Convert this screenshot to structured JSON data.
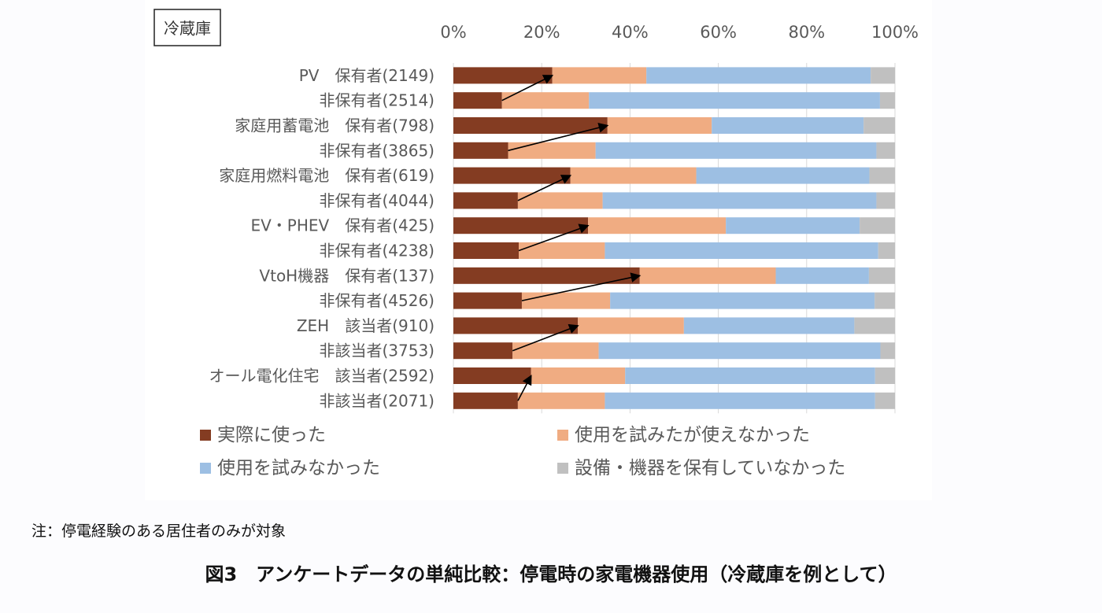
{
  "note": "注：停電経験のある居住者のみが対象",
  "caption": "図3　アンケートデータの単純比較：停電時の家電機器使用（冷蔵庫を例として）",
  "chart_data": {
    "type": "bar",
    "orientation": "horizontal",
    "stacked": "percent",
    "title": "冷蔵庫",
    "xlim": [
      0,
      100
    ],
    "x_ticks": [
      "0%",
      "20%",
      "40%",
      "60%",
      "80%",
      "100%"
    ],
    "categories": [
      "PV　保有者(2149)",
      "非保有者(2514)",
      "家庭用蓄電池　保有者(798)",
      "非保有者(3865)",
      "家庭用燃料電池　保有者(619)",
      "非保有者(4044)",
      "EV・PHEV　保有者(425)",
      "非保有者(4238)",
      "VtoH機器　保有者(137)",
      "非保有者(4526)",
      "ZEH　該当者(910)",
      "非該当者(3753)",
      "オール電化住宅　該当者(2592)",
      "非該当者(2071)"
    ],
    "series": [
      {
        "name": "実際に使った",
        "color": "#843c22",
        "values": [
          22.4,
          11.0,
          34.9,
          12.4,
          26.5,
          14.6,
          30.5,
          14.8,
          42.2,
          15.5,
          28.2,
          13.4,
          17.6,
          14.6
        ]
      },
      {
        "name": "使用を試みたが使えなかった",
        "color": "#f0ac82",
        "values": [
          21.3,
          19.7,
          23.6,
          19.8,
          28.5,
          19.2,
          31.2,
          19.5,
          30.8,
          20.0,
          24.0,
          19.5,
          21.3,
          19.7
        ]
      },
      {
        "name": "使用を試みなかった",
        "color": "#9dbfe3",
        "values": [
          50.8,
          65.9,
          34.4,
          63.6,
          39.2,
          62.0,
          30.3,
          61.9,
          21.1,
          59.9,
          38.6,
          63.8,
          56.6,
          61.2
        ]
      },
      {
        "name": "設備・機器を保有していなかった",
        "color": "#c0c0c0",
        "values": [
          5.5,
          3.4,
          7.1,
          4.2,
          5.8,
          4.2,
          8.0,
          3.8,
          5.9,
          4.6,
          9.2,
          3.3,
          4.5,
          4.5
        ]
      }
    ],
    "legend_position": "bottom",
    "grid": true
  }
}
